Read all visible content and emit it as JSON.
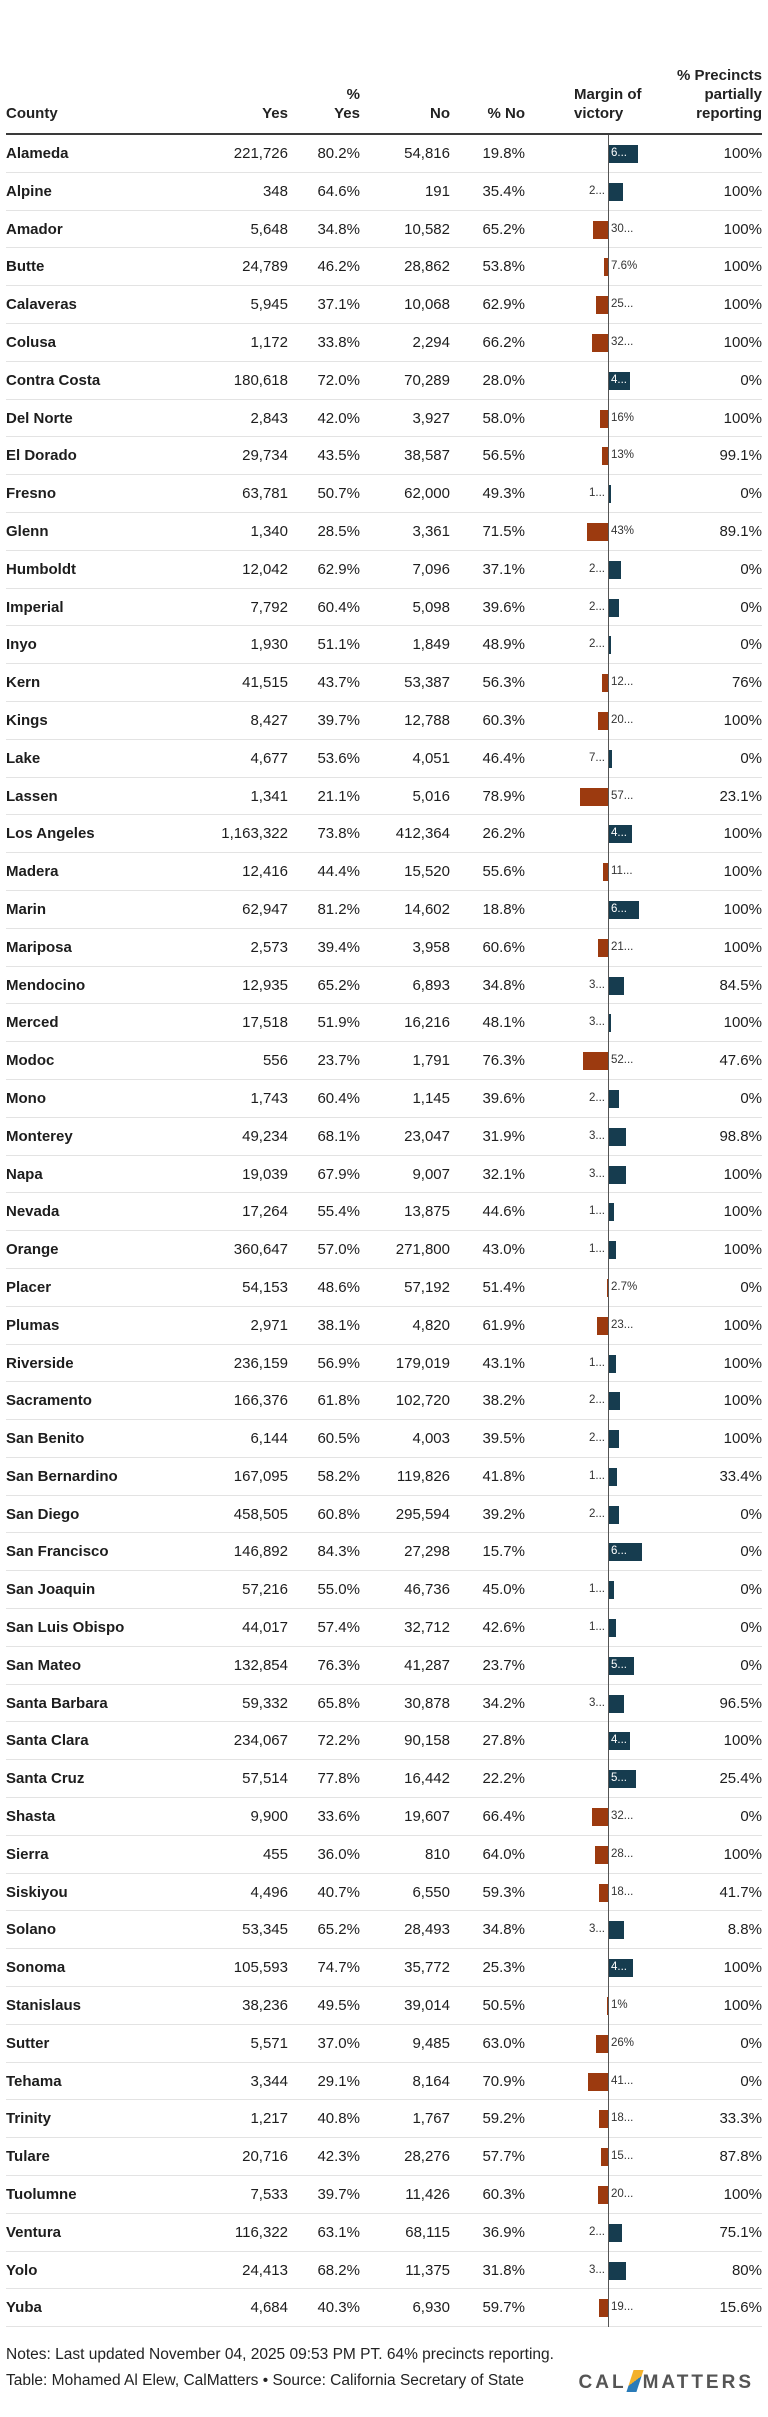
{
  "headers": {
    "county": "County",
    "yes": "Yes",
    "pct_yes": "% Yes",
    "no": "No",
    "pct_no": "% No",
    "margin": "Margin of victory",
    "precincts": "% Precincts partially reporting"
  },
  "colors": {
    "yes_bar": "#163c4f",
    "no_bar": "#9c3a0f"
  },
  "rows": [
    {
      "county": "Alameda",
      "yes": "221,726",
      "pct_yes": "80.2%",
      "no": "54,816",
      "pct_no": "19.8%",
      "margin": 60.4,
      "margin_label": "6...",
      "precincts": "100%"
    },
    {
      "county": "Alpine",
      "yes": "348",
      "pct_yes": "64.6%",
      "no": "191",
      "pct_no": "35.4%",
      "margin": 29.2,
      "margin_label": "2...",
      "precincts": "100%"
    },
    {
      "county": "Amador",
      "yes": "5,648",
      "pct_yes": "34.8%",
      "no": "10,582",
      "pct_no": "65.2%",
      "margin": -30.4,
      "margin_label": "30...",
      "precincts": "100%"
    },
    {
      "county": "Butte",
      "yes": "24,789",
      "pct_yes": "46.2%",
      "no": "28,862",
      "pct_no": "53.8%",
      "margin": -7.6,
      "margin_label": "7.6%",
      "precincts": "100%"
    },
    {
      "county": "Calaveras",
      "yes": "5,945",
      "pct_yes": "37.1%",
      "no": "10,068",
      "pct_no": "62.9%",
      "margin": -25.8,
      "margin_label": "25...",
      "precincts": "100%"
    },
    {
      "county": "Colusa",
      "yes": "1,172",
      "pct_yes": "33.8%",
      "no": "2,294",
      "pct_no": "66.2%",
      "margin": -32.4,
      "margin_label": "32...",
      "precincts": "100%"
    },
    {
      "county": "Contra Costa",
      "yes": "180,618",
      "pct_yes": "72.0%",
      "no": "70,289",
      "pct_no": "28.0%",
      "margin": 44.0,
      "margin_label": "4...",
      "precincts": "0%"
    },
    {
      "county": "Del Norte",
      "yes": "2,843",
      "pct_yes": "42.0%",
      "no": "3,927",
      "pct_no": "58.0%",
      "margin": -16.0,
      "margin_label": "16%",
      "precincts": "100%"
    },
    {
      "county": "El Dorado",
      "yes": "29,734",
      "pct_yes": "43.5%",
      "no": "38,587",
      "pct_no": "56.5%",
      "margin": -13.0,
      "margin_label": "13%",
      "precincts": "99.1%"
    },
    {
      "county": "Fresno",
      "yes": "63,781",
      "pct_yes": "50.7%",
      "no": "62,000",
      "pct_no": "49.3%",
      "margin": 1.4,
      "margin_label": "1...",
      "precincts": "0%"
    },
    {
      "county": "Glenn",
      "yes": "1,340",
      "pct_yes": "28.5%",
      "no": "3,361",
      "pct_no": "71.5%",
      "margin": -43.0,
      "margin_label": "43%",
      "precincts": "89.1%"
    },
    {
      "county": "Humboldt",
      "yes": "12,042",
      "pct_yes": "62.9%",
      "no": "7,096",
      "pct_no": "37.1%",
      "margin": 25.8,
      "margin_label": "2...",
      "precincts": "0%"
    },
    {
      "county": "Imperial",
      "yes": "7,792",
      "pct_yes": "60.4%",
      "no": "5,098",
      "pct_no": "39.6%",
      "margin": 20.8,
      "margin_label": "2...",
      "precincts": "0%"
    },
    {
      "county": "Inyo",
      "yes": "1,930",
      "pct_yes": "51.1%",
      "no": "1,849",
      "pct_no": "48.9%",
      "margin": 2.2,
      "margin_label": "2...",
      "precincts": "0%"
    },
    {
      "county": "Kern",
      "yes": "41,515",
      "pct_yes": "43.7%",
      "no": "53,387",
      "pct_no": "56.3%",
      "margin": -12.6,
      "margin_label": "12...",
      "precincts": "76%"
    },
    {
      "county": "Kings",
      "yes": "8,427",
      "pct_yes": "39.7%",
      "no": "12,788",
      "pct_no": "60.3%",
      "margin": -20.6,
      "margin_label": "20...",
      "precincts": "100%"
    },
    {
      "county": "Lake",
      "yes": "4,677",
      "pct_yes": "53.6%",
      "no": "4,051",
      "pct_no": "46.4%",
      "margin": 7.2,
      "margin_label": "7...",
      "precincts": "0%"
    },
    {
      "county": "Lassen",
      "yes": "1,341",
      "pct_yes": "21.1%",
      "no": "5,016",
      "pct_no": "78.9%",
      "margin": -57.8,
      "margin_label": "57...",
      "precincts": "23.1%"
    },
    {
      "county": "Los Angeles",
      "yes": "1,163,322",
      "pct_yes": "73.8%",
      "no": "412,364",
      "pct_no": "26.2%",
      "margin": 47.6,
      "margin_label": "4...",
      "precincts": "100%"
    },
    {
      "county": "Madera",
      "yes": "12,416",
      "pct_yes": "44.4%",
      "no": "15,520",
      "pct_no": "55.6%",
      "margin": -11.2,
      "margin_label": "11...",
      "precincts": "100%"
    },
    {
      "county": "Marin",
      "yes": "62,947",
      "pct_yes": "81.2%",
      "no": "14,602",
      "pct_no": "18.8%",
      "margin": 62.4,
      "margin_label": "6...",
      "precincts": "100%"
    },
    {
      "county": "Mariposa",
      "yes": "2,573",
      "pct_yes": "39.4%",
      "no": "3,958",
      "pct_no": "60.6%",
      "margin": -21.2,
      "margin_label": "21...",
      "precincts": "100%"
    },
    {
      "county": "Mendocino",
      "yes": "12,935",
      "pct_yes": "65.2%",
      "no": "6,893",
      "pct_no": "34.8%",
      "margin": 30.4,
      "margin_label": "3...",
      "precincts": "84.5%"
    },
    {
      "county": "Merced",
      "yes": "17,518",
      "pct_yes": "51.9%",
      "no": "16,216",
      "pct_no": "48.1%",
      "margin": 3.8,
      "margin_label": "3...",
      "precincts": "100%"
    },
    {
      "county": "Modoc",
      "yes": "556",
      "pct_yes": "23.7%",
      "no": "1,791",
      "pct_no": "76.3%",
      "margin": -52.6,
      "margin_label": "52...",
      "precincts": "47.6%"
    },
    {
      "county": "Mono",
      "yes": "1,743",
      "pct_yes": "60.4%",
      "no": "1,145",
      "pct_no": "39.6%",
      "margin": 20.8,
      "margin_label": "2...",
      "precincts": "0%"
    },
    {
      "county": "Monterey",
      "yes": "49,234",
      "pct_yes": "68.1%",
      "no": "23,047",
      "pct_no": "31.9%",
      "margin": 36.2,
      "margin_label": "3...",
      "precincts": "98.8%"
    },
    {
      "county": "Napa",
      "yes": "19,039",
      "pct_yes": "67.9%",
      "no": "9,007",
      "pct_no": "32.1%",
      "margin": 35.8,
      "margin_label": "3...",
      "precincts": "100%"
    },
    {
      "county": "Nevada",
      "yes": "17,264",
      "pct_yes": "55.4%",
      "no": "13,875",
      "pct_no": "44.6%",
      "margin": 10.8,
      "margin_label": "1...",
      "precincts": "100%"
    },
    {
      "county": "Orange",
      "yes": "360,647",
      "pct_yes": "57.0%",
      "no": "271,800",
      "pct_no": "43.0%",
      "margin": 14.0,
      "margin_label": "1...",
      "precincts": "100%"
    },
    {
      "county": "Placer",
      "yes": "54,153",
      "pct_yes": "48.6%",
      "no": "57,192",
      "pct_no": "51.4%",
      "margin": -2.7,
      "margin_label": "2.7%",
      "precincts": "0%"
    },
    {
      "county": "Plumas",
      "yes": "2,971",
      "pct_yes": "38.1%",
      "no": "4,820",
      "pct_no": "61.9%",
      "margin": -23.8,
      "margin_label": "23...",
      "precincts": "100%"
    },
    {
      "county": "Riverside",
      "yes": "236,159",
      "pct_yes": "56.9%",
      "no": "179,019",
      "pct_no": "43.1%",
      "margin": 13.8,
      "margin_label": "1...",
      "precincts": "100%"
    },
    {
      "county": "Sacramento",
      "yes": "166,376",
      "pct_yes": "61.8%",
      "no": "102,720",
      "pct_no": "38.2%",
      "margin": 23.6,
      "margin_label": "2...",
      "precincts": "100%"
    },
    {
      "county": "San Benito",
      "yes": "6,144",
      "pct_yes": "60.5%",
      "no": "4,003",
      "pct_no": "39.5%",
      "margin": 21.0,
      "margin_label": "2...",
      "precincts": "100%"
    },
    {
      "county": "San Bernardino",
      "yes": "167,095",
      "pct_yes": "58.2%",
      "no": "119,826",
      "pct_no": "41.8%",
      "margin": 16.4,
      "margin_label": "1...",
      "precincts": "33.4%"
    },
    {
      "county": "San Diego",
      "yes": "458,505",
      "pct_yes": "60.8%",
      "no": "295,594",
      "pct_no": "39.2%",
      "margin": 21.6,
      "margin_label": "2...",
      "precincts": "0%"
    },
    {
      "county": "San Francisco",
      "yes": "146,892",
      "pct_yes": "84.3%",
      "no": "27,298",
      "pct_no": "15.7%",
      "margin": 68.6,
      "margin_label": "6...",
      "precincts": "0%"
    },
    {
      "county": "San Joaquin",
      "yes": "57,216",
      "pct_yes": "55.0%",
      "no": "46,736",
      "pct_no": "45.0%",
      "margin": 10.0,
      "margin_label": "1...",
      "precincts": "0%"
    },
    {
      "county": "San Luis Obispo",
      "yes": "44,017",
      "pct_yes": "57.4%",
      "no": "32,712",
      "pct_no": "42.6%",
      "margin": 14.8,
      "margin_label": "1...",
      "precincts": "0%"
    },
    {
      "county": "San Mateo",
      "yes": "132,854",
      "pct_yes": "76.3%",
      "no": "41,287",
      "pct_no": "23.7%",
      "margin": 52.6,
      "margin_label": "5...",
      "precincts": "0%"
    },
    {
      "county": "Santa Barbara",
      "yes": "59,332",
      "pct_yes": "65.8%",
      "no": "30,878",
      "pct_no": "34.2%",
      "margin": 31.6,
      "margin_label": "3...",
      "precincts": "96.5%"
    },
    {
      "county": "Santa Clara",
      "yes": "234,067",
      "pct_yes": "72.2%",
      "no": "90,158",
      "pct_no": "27.8%",
      "margin": 44.4,
      "margin_label": "4...",
      "precincts": "100%"
    },
    {
      "county": "Santa Cruz",
      "yes": "57,514",
      "pct_yes": "77.8%",
      "no": "16,442",
      "pct_no": "22.2%",
      "margin": 55.6,
      "margin_label": "5...",
      "precincts": "25.4%"
    },
    {
      "county": "Shasta",
      "yes": "9,900",
      "pct_yes": "33.6%",
      "no": "19,607",
      "pct_no": "66.4%",
      "margin": -32.8,
      "margin_label": "32...",
      "precincts": "0%"
    },
    {
      "county": "Sierra",
      "yes": "455",
      "pct_yes": "36.0%",
      "no": "810",
      "pct_no": "64.0%",
      "margin": -28.0,
      "margin_label": "28...",
      "precincts": "100%"
    },
    {
      "county": "Siskiyou",
      "yes": "4,496",
      "pct_yes": "40.7%",
      "no": "6,550",
      "pct_no": "59.3%",
      "margin": -18.6,
      "margin_label": "18...",
      "precincts": "41.7%"
    },
    {
      "county": "Solano",
      "yes": "53,345",
      "pct_yes": "65.2%",
      "no": "28,493",
      "pct_no": "34.8%",
      "margin": 30.4,
      "margin_label": "3...",
      "precincts": "8.8%"
    },
    {
      "county": "Sonoma",
      "yes": "105,593",
      "pct_yes": "74.7%",
      "no": "35,772",
      "pct_no": "25.3%",
      "margin": 49.4,
      "margin_label": "4...",
      "precincts": "100%"
    },
    {
      "county": "Stanislaus",
      "yes": "38,236",
      "pct_yes": "49.5%",
      "no": "39,014",
      "pct_no": "50.5%",
      "margin": -1.0,
      "margin_label": "1%",
      "precincts": "100%"
    },
    {
      "county": "Sutter",
      "yes": "5,571",
      "pct_yes": "37.0%",
      "no": "9,485",
      "pct_no": "63.0%",
      "margin": -26.0,
      "margin_label": "26%",
      "precincts": "0%"
    },
    {
      "county": "Tehama",
      "yes": "3,344",
      "pct_yes": "29.1%",
      "no": "8,164",
      "pct_no": "70.9%",
      "margin": -41.8,
      "margin_label": "41...",
      "precincts": "0%"
    },
    {
      "county": "Trinity",
      "yes": "1,217",
      "pct_yes": "40.8%",
      "no": "1,767",
      "pct_no": "59.2%",
      "margin": -18.4,
      "margin_label": "18...",
      "precincts": "33.3%"
    },
    {
      "county": "Tulare",
      "yes": "20,716",
      "pct_yes": "42.3%",
      "no": "28,276",
      "pct_no": "57.7%",
      "margin": -15.4,
      "margin_label": "15...",
      "precincts": "87.8%"
    },
    {
      "county": "Tuolumne",
      "yes": "7,533",
      "pct_yes": "39.7%",
      "no": "11,426",
      "pct_no": "60.3%",
      "margin": -20.6,
      "margin_label": "20...",
      "precincts": "100%"
    },
    {
      "county": "Ventura",
      "yes": "116,322",
      "pct_yes": "63.1%",
      "no": "68,115",
      "pct_no": "36.9%",
      "margin": 26.2,
      "margin_label": "2...",
      "precincts": "75.1%"
    },
    {
      "county": "Yolo",
      "yes": "24,413",
      "pct_yes": "68.2%",
      "no": "11,375",
      "pct_no": "31.8%",
      "margin": 36.4,
      "margin_label": "3...",
      "precincts": "80%"
    },
    {
      "county": "Yuba",
      "yes": "4,684",
      "pct_yes": "40.3%",
      "no": "6,930",
      "pct_no": "59.7%",
      "margin": -19.4,
      "margin_label": "19...",
      "precincts": "15.6%"
    }
  ],
  "footer": {
    "notes": "Notes: Last updated November 04, 2025 09:53 PM PT. 64% precincts reporting.",
    "credit": "Table: Mohamed Al Elew, CalMatters • Source: California Secretary of State",
    "logo_left": "CAL",
    "logo_right": "MATTERS"
  }
}
